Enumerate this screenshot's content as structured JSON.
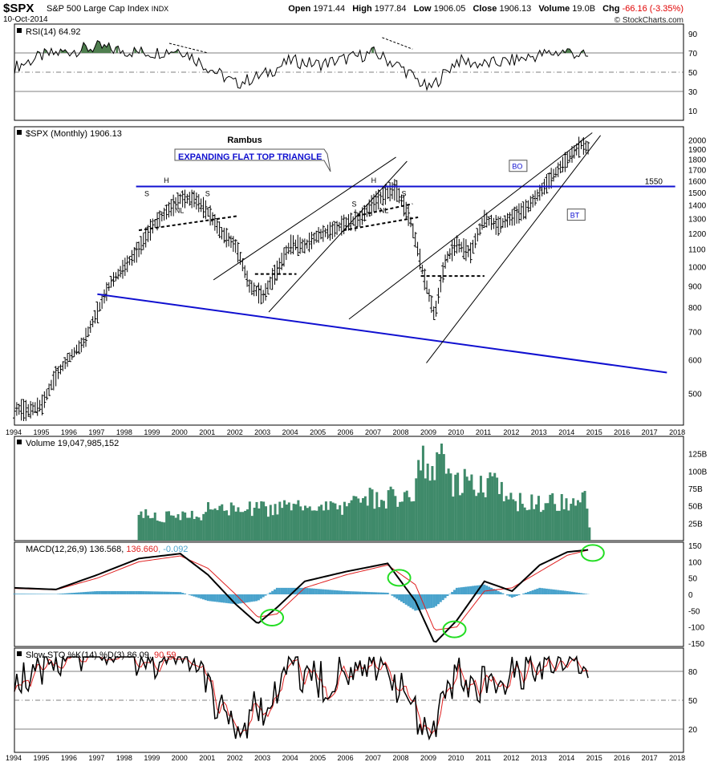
{
  "header": {
    "symbol": "$SPX",
    "name": "S&P 500 Large Cap Index",
    "exchange": "INDX",
    "date": "10-Oct-2014",
    "open_label": "Open",
    "open": "1971.44",
    "high_label": "High",
    "high": "1977.84",
    "low_label": "Low",
    "low": "1906.05",
    "close_label": "Close",
    "close": "1906.13",
    "volume_label": "Volume",
    "volume": "19.0B",
    "chg_label": "Chg",
    "chg": "-66.16 (-3.35%)",
    "brand": "© StockCharts.com"
  },
  "colors": {
    "price_bar": "#000000",
    "trendline_blue": "#1010d0",
    "volume": "#3f8a6a",
    "macd_hist": "#4aa3cc",
    "signal": "#e02020",
    "highlight_circle": "#22dd22",
    "rsi_overbought": "#4f7f4f",
    "rsi_oversold": "#7a3f3f",
    "annotation_text": "#1010d0"
  },
  "chart_data": [
    {
      "type": "line",
      "title": "RSI(14) 64.92",
      "indicator": "RSI",
      "period": 14,
      "last_value": "64.92",
      "ylim": [
        0,
        100
      ],
      "yticks": [
        "90",
        "70",
        "50",
        "30",
        "10"
      ],
      "reference_lines": [
        70,
        50,
        30
      ],
      "x": [
        1994.0,
        1995.0,
        1996.0,
        1997.0,
        1998.0,
        1999.0,
        2000.0,
        2001.0,
        2002.0,
        2003.0,
        2004.0,
        2005.0,
        2006.0,
        2007.0,
        2008.0,
        2009.0,
        2010.0,
        2011.0,
        2012.0,
        2013.0,
        2014.0,
        2014.8
      ],
      "values": [
        55,
        67,
        72,
        76,
        72,
        70,
        74,
        55,
        38,
        47,
        62,
        58,
        64,
        70,
        55,
        32,
        62,
        58,
        62,
        68,
        72,
        65
      ],
      "annotations": [
        "dashed divergence line 2000",
        "dashed divergence line 2007"
      ]
    },
    {
      "type": "ohlc",
      "title": "$SPX (Monthly) 1906.13",
      "scale": "log",
      "ylim": [
        420,
        2150
      ],
      "yticks": [
        "2000",
        "1900",
        "1800",
        "1700",
        "1600",
        "1500",
        "1400",
        "1300",
        "1200",
        "1100",
        "1000",
        "900",
        "800",
        "700",
        "600",
        "500"
      ],
      "xlim": [
        1994.0,
        2018.2
      ],
      "xticks": [
        "1994",
        "1995",
        "1996",
        "1997",
        "1998",
        "1999",
        "2000",
        "2001",
        "2002",
        "2003",
        "2004",
        "2005",
        "2006",
        "2007",
        "2008",
        "2009",
        "2010",
        "2011",
        "2012",
        "2013",
        "2014",
        "2015",
        "2016",
        "2017",
        "2018"
      ],
      "x": [
        1994.0,
        1994.5,
        1995.0,
        1995.5,
        1996.0,
        1996.5,
        1997.0,
        1997.5,
        1998.0,
        1998.5,
        1999.0,
        1999.5,
        2000.0,
        2000.5,
        2001.0,
        2001.5,
        2002.0,
        2002.5,
        2003.0,
        2003.5,
        2004.0,
        2004.5,
        2005.0,
        2005.5,
        2006.0,
        2006.5,
        2007.0,
        2007.5,
        2007.8,
        2008.3,
        2008.8,
        2009.2,
        2009.6,
        2010.0,
        2010.5,
        2011.0,
        2011.5,
        2012.0,
        2012.5,
        2013.0,
        2013.5,
        2014.0,
        2014.5,
        2014.8
      ],
      "values": [
        460,
        455,
        470,
        550,
        610,
        660,
        780,
        920,
        1000,
        1100,
        1250,
        1350,
        1450,
        1450,
        1350,
        1200,
        1120,
        900,
        850,
        980,
        1130,
        1120,
        1190,
        1220,
        1270,
        1300,
        1420,
        1500,
        1530,
        1300,
        950,
        760,
        1040,
        1130,
        1080,
        1300,
        1250,
        1310,
        1370,
        1500,
        1650,
        1800,
        1950,
        1906
      ],
      "annotations": [
        "Rambus",
        "EXPANDING FLAT TOP TRIANGLE",
        "H",
        "H",
        "S",
        "S",
        "S",
        "S",
        "NL",
        "NL",
        "BO",
        "BT",
        "1550"
      ],
      "horizontal_line": 1550
    },
    {
      "type": "bar",
      "title": "Volume 19,047,985,152",
      "ylim": [
        0,
        150
      ],
      "yticks": [
        "125B",
        "100B",
        "75B",
        "50B",
        "25B"
      ],
      "x_start": 1998.5,
      "x_end": 2014.8,
      "bar_count": 196,
      "regimes": [
        {
          "from": 1998.5,
          "to": 2001.0,
          "level": 35
        },
        {
          "from": 2001.0,
          "to": 2006.0,
          "level": 45
        },
        {
          "from": 2006.0,
          "to": 2008.5,
          "level": 60
        },
        {
          "from": 2008.5,
          "to": 2009.7,
          "level": 110
        },
        {
          "from": 2009.7,
          "to": 2011.7,
          "level": 80
        },
        {
          "from": 2011.7,
          "to": 2014.8,
          "level": 55
        }
      ],
      "last_value": "19,047,985,152"
    },
    {
      "type": "line",
      "title": "MACD(12,26,9) 136.568, 136.660, -0.092",
      "macd_label": "MACD(12,26,9)",
      "macd_value": "136.568",
      "signal_value": "136.660",
      "hist_value": "-0.092",
      "ylim": [
        -160,
        160
      ],
      "yticks": [
        "150",
        "100",
        "50",
        "0",
        "-50",
        "-100",
        "-150"
      ],
      "x": [
        1994.0,
        1995.5,
        1997.0,
        1998.5,
        2000.0,
        2001.0,
        2002.0,
        2002.8,
        2003.5,
        2004.5,
        2006.0,
        2007.5,
        2008.5,
        2009.2,
        2010.0,
        2011.0,
        2012.0,
        2013.0,
        2014.0,
        2014.8
      ],
      "macd": [
        20,
        15,
        60,
        110,
        125,
        60,
        -30,
        -90,
        -40,
        40,
        70,
        95,
        -20,
        -150,
        -80,
        40,
        10,
        90,
        130,
        137
      ],
      "signal": [
        18,
        14,
        50,
        100,
        118,
        80,
        0,
        -70,
        -60,
        20,
        60,
        90,
        30,
        -110,
        -100,
        10,
        20,
        70,
        120,
        137
      ],
      "circled_points": [
        2003.2,
        2007.8,
        2009.8,
        2014.8
      ]
    },
    {
      "type": "line",
      "title": "Slow STO %K(14) %D(3) 86.09, 90.59",
      "stoch_label": "Slow STO %K(14) %D(3)",
      "k_value": "86.09",
      "d_value": "90.59",
      "ylim": [
        0,
        100
      ],
      "yticks": [
        "80",
        "50",
        "20"
      ],
      "reference_lines": [
        80,
        50,
        20
      ]
    }
  ]
}
